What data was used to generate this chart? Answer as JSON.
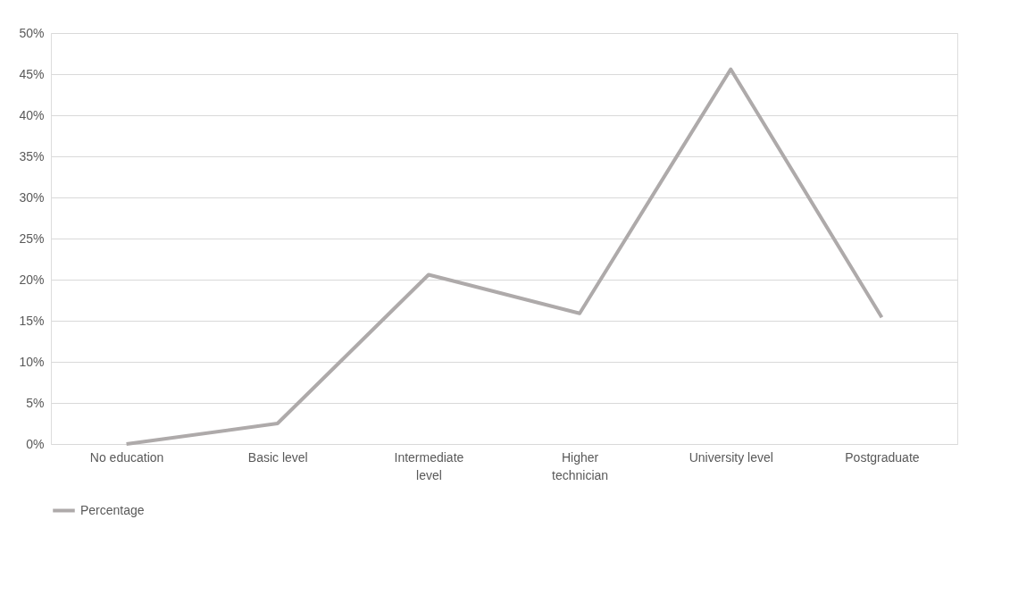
{
  "chart_data": {
    "type": "line",
    "categories": [
      "No education",
      "Basic level",
      "Intermediate level",
      "Higher technician",
      "University level",
      "Postgraduate"
    ],
    "series": [
      {
        "name": "Percentage",
        "color": "#aeaaaa",
        "values": [
          0,
          2.5,
          20.6,
          15.9,
          45.6,
          15.4
        ]
      }
    ],
    "ylim": [
      0,
      50
    ],
    "yticks": [
      {
        "value": 0,
        "label": "0%"
      },
      {
        "value": 5,
        "label": "5%"
      },
      {
        "value": 10,
        "label": "10%"
      },
      {
        "value": 15,
        "label": "15%"
      },
      {
        "value": 20,
        "label": "20%"
      },
      {
        "value": 25,
        "label": "25%"
      },
      {
        "value": 30,
        "label": "30%"
      },
      {
        "value": 35,
        "label": "35%"
      },
      {
        "value": 40,
        "label": "40%"
      },
      {
        "value": 45,
        "label": "45%"
      },
      {
        "value": 50,
        "label": "50%"
      }
    ],
    "grid": "y",
    "legend": "bottom",
    "marker": "none",
    "line_style": "solid"
  }
}
